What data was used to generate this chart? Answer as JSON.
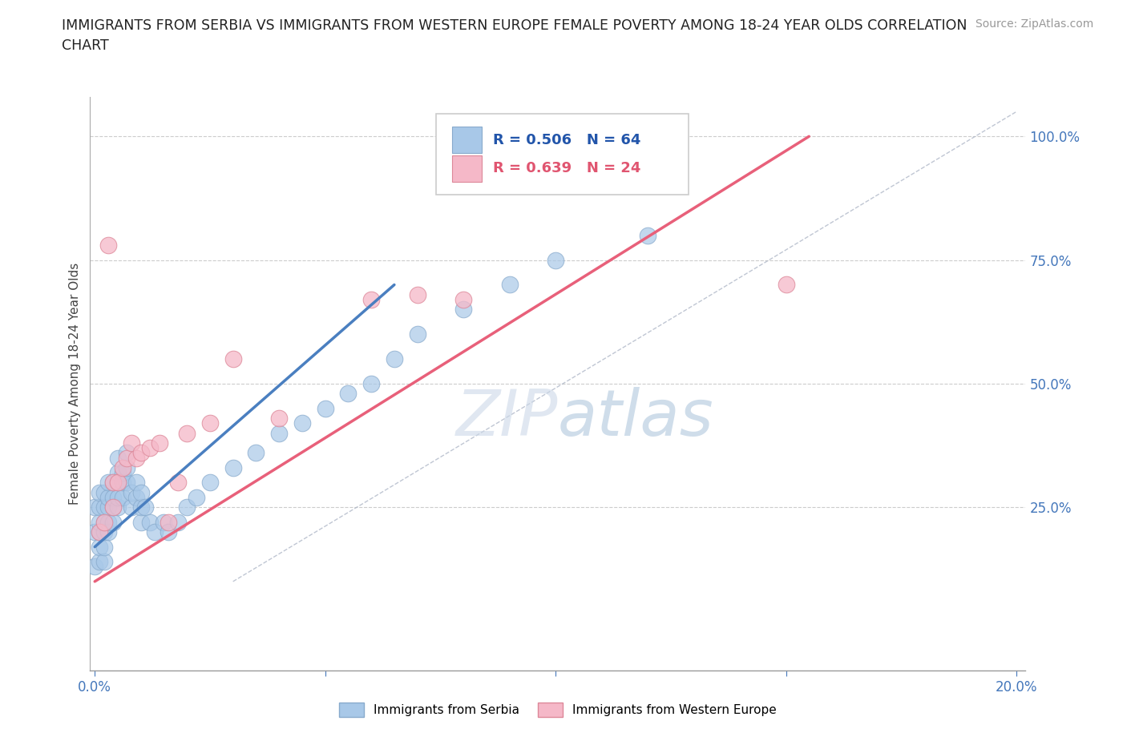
{
  "title": "IMMIGRANTS FROM SERBIA VS IMMIGRANTS FROM WESTERN EUROPE FEMALE POVERTY AMONG 18-24 YEAR OLDS CORRELATION\nCHART",
  "source": "Source: ZipAtlas.com",
  "ylabel": "Female Poverty Among 18-24 Year Olds",
  "xlim": [
    -0.001,
    0.202
  ],
  "ylim": [
    -0.08,
    1.08
  ],
  "x_ticks": [
    0.0,
    0.05,
    0.1,
    0.15,
    0.2
  ],
  "x_tick_labels": [
    "0.0%",
    "",
    "",
    "",
    "20.0%"
  ],
  "y_ticks_right": [
    0.25,
    0.5,
    0.75,
    1.0
  ],
  "y_tick_labels_right": [
    "25.0%",
    "50.0%",
    "75.0%",
    "100.0%"
  ],
  "serbia_color": "#A8C8E8",
  "western_color": "#F5B8C8",
  "serbia_edge": "#88aacc",
  "western_edge": "#dd8899",
  "line_blue": "#4a7fc0",
  "line_pink": "#e8607a",
  "grid_color": "#cccccc",
  "diag_color": "#b0b8c8",
  "r_serbia": 0.506,
  "n_serbia": 64,
  "r_western": 0.639,
  "n_western": 24,
  "serbia_x": [
    0.0,
    0.0,
    0.0,
    0.001,
    0.001,
    0.001,
    0.001,
    0.001,
    0.001,
    0.002,
    0.002,
    0.002,
    0.002,
    0.002,
    0.002,
    0.003,
    0.003,
    0.003,
    0.003,
    0.003,
    0.004,
    0.004,
    0.004,
    0.004,
    0.005,
    0.005,
    0.005,
    0.005,
    0.005,
    0.006,
    0.006,
    0.006,
    0.007,
    0.007,
    0.007,
    0.008,
    0.008,
    0.009,
    0.009,
    0.01,
    0.01,
    0.01,
    0.011,
    0.012,
    0.013,
    0.015,
    0.016,
    0.018,
    0.02,
    0.022,
    0.025,
    0.03,
    0.035,
    0.04,
    0.045,
    0.05,
    0.055,
    0.06,
    0.065,
    0.07,
    0.08,
    0.09,
    0.1,
    0.12
  ],
  "serbia_y": [
    0.2,
    0.25,
    0.13,
    0.14,
    0.17,
    0.2,
    0.22,
    0.25,
    0.28,
    0.14,
    0.17,
    0.2,
    0.22,
    0.25,
    0.28,
    0.2,
    0.22,
    0.25,
    0.27,
    0.3,
    0.22,
    0.25,
    0.27,
    0.3,
    0.25,
    0.27,
    0.3,
    0.32,
    0.35,
    0.27,
    0.3,
    0.32,
    0.3,
    0.33,
    0.36,
    0.25,
    0.28,
    0.27,
    0.3,
    0.22,
    0.25,
    0.28,
    0.25,
    0.22,
    0.2,
    0.22,
    0.2,
    0.22,
    0.25,
    0.27,
    0.3,
    0.33,
    0.36,
    0.4,
    0.42,
    0.45,
    0.48,
    0.5,
    0.55,
    0.6,
    0.65,
    0.7,
    0.75,
    0.8
  ],
  "western_x": [
    0.001,
    0.002,
    0.003,
    0.004,
    0.004,
    0.005,
    0.006,
    0.007,
    0.008,
    0.009,
    0.01,
    0.012,
    0.014,
    0.016,
    0.018,
    0.02,
    0.025,
    0.03,
    0.04,
    0.06,
    0.07,
    0.08,
    0.12,
    0.15
  ],
  "western_y": [
    0.2,
    0.22,
    0.78,
    0.25,
    0.3,
    0.3,
    0.33,
    0.35,
    0.38,
    0.35,
    0.36,
    0.37,
    0.38,
    0.22,
    0.3,
    0.4,
    0.42,
    0.55,
    0.43,
    0.67,
    0.68,
    0.67,
    1.0,
    0.7
  ],
  "blue_line_x": [
    0.0,
    0.065
  ],
  "blue_line_y": [
    0.17,
    0.7
  ],
  "pink_line_x": [
    0.0,
    0.155
  ],
  "pink_line_y": [
    0.1,
    1.0
  ]
}
